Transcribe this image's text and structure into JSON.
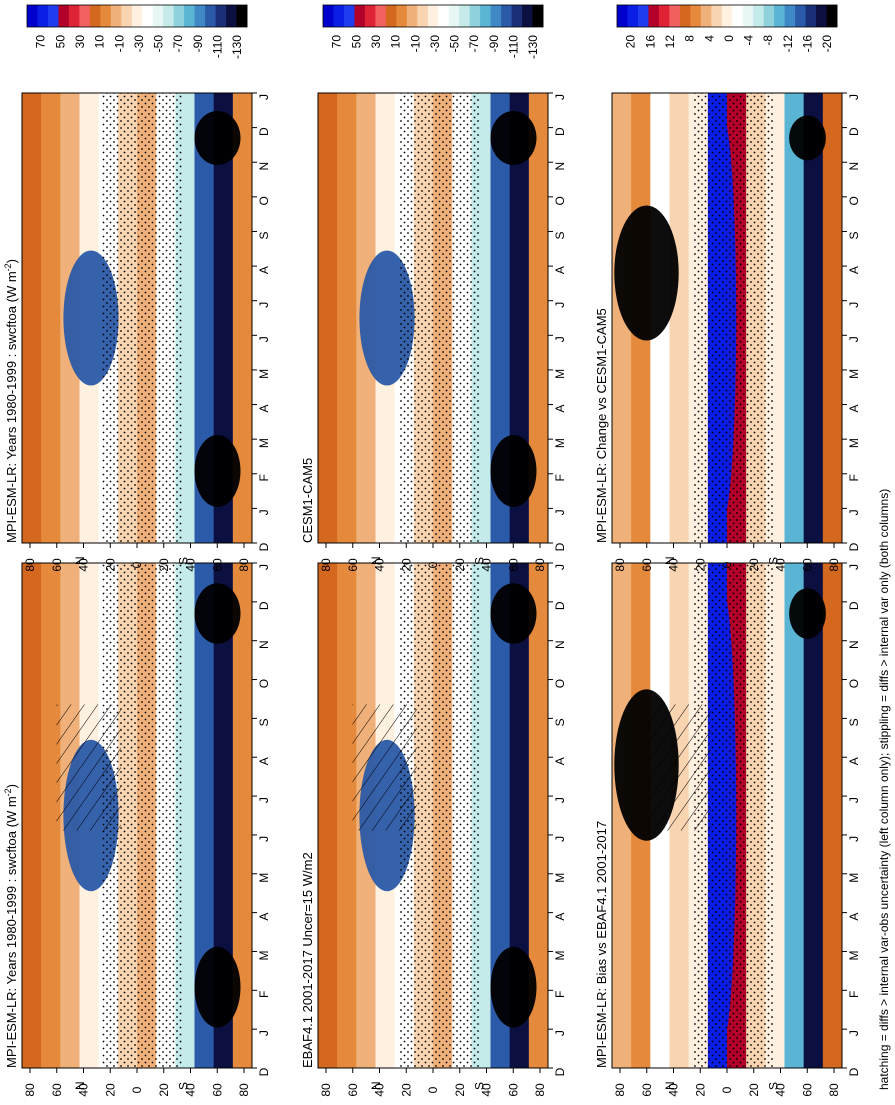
{
  "footnote": "hatching = diffs > internal var-obs uncertainty (left column only); stippling = diffs > internal var only (both columns)",
  "chart_data": [
    {
      "type": "heatmap",
      "title": "MPI-ESM-LR: Years 1980-1999 : swcftoa (W m⁻²)",
      "title_main": "MPI-ESM-LR: Years 1980-1999 : swcftoa (W m",
      "title_sup": "-2",
      "title_close": ")",
      "months": [
        "D",
        "J",
        "F",
        "M",
        "A",
        "M",
        "J",
        "J",
        "A",
        "S",
        "O",
        "N",
        "D",
        "J"
      ],
      "lat_ticks": [
        "80",
        "60",
        "40",
        "20",
        "0",
        "20",
        "40",
        "60",
        "80"
      ],
      "lat_labels": [
        "N",
        "S"
      ],
      "colorbar": [
        "70",
        "50",
        "30",
        "10",
        "-10",
        "-30",
        "-50",
        "-70",
        "-90",
        "-110",
        "-130"
      ],
      "scale": "swcf",
      "hatching": true
    },
    {
      "type": "heatmap",
      "title": "MPI-ESM-LR: Years 1980-1999 : swcftoa (W m⁻²)",
      "title_main": "MPI-ESM-LR: Years 1980-1999 : swcftoa (W m",
      "title_sup": "-2",
      "title_close": ")",
      "months": [
        "D",
        "J",
        "F",
        "M",
        "A",
        "M",
        "J",
        "J",
        "A",
        "S",
        "O",
        "N",
        "D",
        "J"
      ],
      "lat_ticks": [
        "80",
        "60",
        "40",
        "20",
        "0",
        "20",
        "40",
        "60",
        "80"
      ],
      "lat_labels": [
        "N",
        "S"
      ],
      "colorbar": [
        "70",
        "50",
        "30",
        "10",
        "-10",
        "-30",
        "-50",
        "-70",
        "-90",
        "-110",
        "-130"
      ],
      "scale": "swcf",
      "hatching": false
    },
    {
      "type": "heatmap",
      "title": "EBAF4.1 2001-2017 Uncer=15 W/m2",
      "title_main": "EBAF4.1 2001-2017 Uncer=15 W/m2",
      "months": [
        "D",
        "J",
        "F",
        "M",
        "A",
        "M",
        "J",
        "J",
        "A",
        "S",
        "O",
        "N",
        "D",
        "J"
      ],
      "lat_ticks": [
        "80",
        "60",
        "40",
        "20",
        "0",
        "20",
        "40",
        "60",
        "80"
      ],
      "lat_labels": [
        "N",
        "S"
      ],
      "colorbar": [
        "70",
        "50",
        "30",
        "10",
        "-10",
        "-30",
        "-50",
        "-70",
        "-90",
        "-110",
        "-130"
      ],
      "scale": "swcf",
      "hatching": true
    },
    {
      "type": "heatmap",
      "title": "CESM1-CAM5",
      "title_main": "CESM1-CAM5",
      "months": [
        "D",
        "J",
        "F",
        "M",
        "A",
        "M",
        "J",
        "J",
        "A",
        "S",
        "O",
        "N",
        "D",
        "J"
      ],
      "lat_ticks": [
        "80",
        "60",
        "40",
        "20",
        "0",
        "20",
        "40",
        "60",
        "80"
      ],
      "lat_labels": [
        "N",
        "S"
      ],
      "colorbar": [
        "70",
        "50",
        "30",
        "10",
        "-10",
        "-30",
        "-50",
        "-70",
        "-90",
        "-110",
        "-130"
      ],
      "scale": "swcf",
      "hatching": false
    },
    {
      "type": "heatmap",
      "title": "MPI-ESM-LR: Bias vs EBAF4.1 2001-2017",
      "title_main": "MPI-ESM-LR: Bias vs EBAF4.1 2001-2017",
      "months": [
        "D",
        "J",
        "F",
        "M",
        "A",
        "M",
        "J",
        "J",
        "A",
        "S",
        "O",
        "N",
        "D",
        "J"
      ],
      "lat_ticks": [
        "80",
        "60",
        "40",
        "20",
        "0",
        "20",
        "40",
        "60",
        "80"
      ],
      "lat_labels": [
        "N",
        "S"
      ],
      "colorbar": [
        "20",
        "16",
        "12",
        "8",
        "4",
        "0",
        "-4",
        "-8",
        "-12",
        "-16",
        "-20"
      ],
      "scale": "diff",
      "hatching": true
    },
    {
      "type": "heatmap",
      "title": "MPI-ESM-LR: Change vs CESM1-CAM5",
      "title_main": "MPI-ESM-LR: Change vs CESM1-CAM5",
      "months": [
        "D",
        "J",
        "F",
        "M",
        "A",
        "M",
        "J",
        "J",
        "A",
        "S",
        "O",
        "N",
        "D",
        "J"
      ],
      "lat_ticks": [
        "80",
        "60",
        "40",
        "20",
        "0",
        "20",
        "40",
        "60",
        "80"
      ],
      "lat_labels": [
        "N",
        "S"
      ],
      "colorbar": [
        "20",
        "16",
        "12",
        "8",
        "4",
        "0",
        "-4",
        "-8",
        "-12",
        "-16",
        "-20"
      ],
      "scale": "diff",
      "hatching": false
    }
  ]
}
